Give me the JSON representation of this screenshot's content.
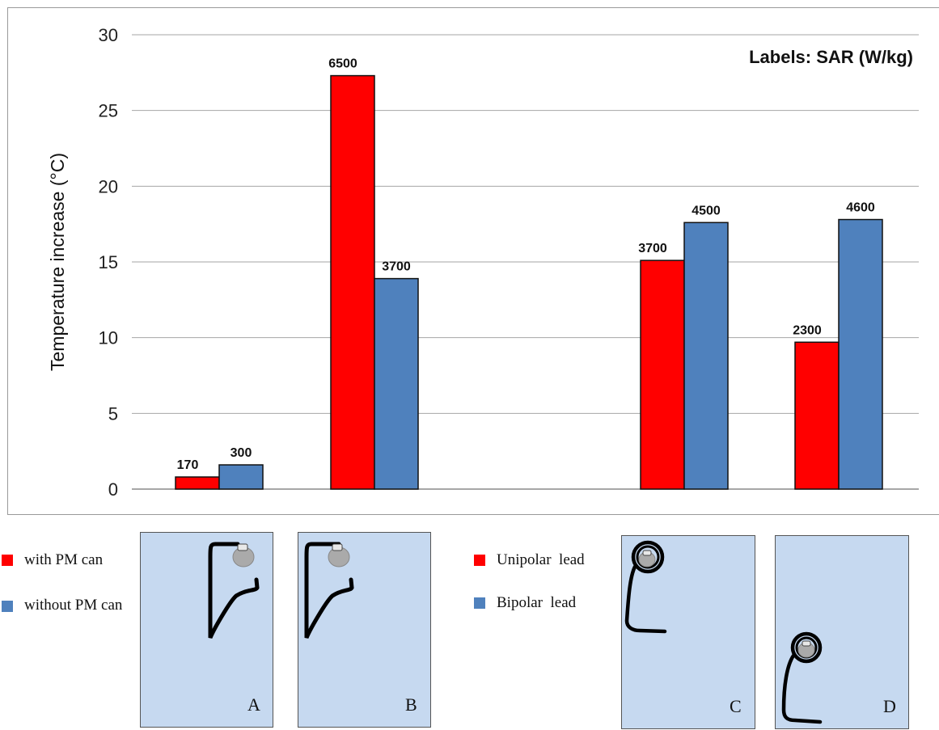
{
  "chart_data": {
    "type": "bar",
    "ylabel": "Temperature increase (°C)",
    "ylim": [
      0,
      30
    ],
    "yticks": [
      0,
      5,
      10,
      15,
      20,
      25,
      30
    ],
    "grid": true,
    "annotation": "Labels: SAR (W/kg)",
    "groups": [
      {
        "panel": "A",
        "bars": [
          {
            "value": 0.8,
            "label": "170",
            "color": "#ff0000"
          },
          {
            "value": 1.6,
            "label": "300",
            "color": "#4f81bd"
          }
        ]
      },
      {
        "panel": "B",
        "bars": [
          {
            "value": 27.3,
            "label": "6500",
            "color": "#ff0000"
          },
          {
            "value": 13.9,
            "label": "3700",
            "color": "#4f81bd"
          }
        ]
      },
      {
        "panel": "C",
        "bars": [
          {
            "value": 15.1,
            "label": "3700",
            "color": "#ff0000"
          },
          {
            "value": 17.6,
            "label": "4500",
            "color": "#4f81bd"
          }
        ]
      },
      {
        "panel": "D",
        "bars": [
          {
            "value": 9.7,
            "label": "2300",
            "color": "#ff0000"
          },
          {
            "value": 17.8,
            "label": "4600",
            "color": "#4f81bd"
          }
        ]
      }
    ]
  },
  "legend_left": [
    {
      "label": "with PM can",
      "color": "#ff0000"
    },
    {
      "label": "without PM can",
      "color": "#4f81bd"
    }
  ],
  "legend_right": [
    {
      "label": "Unipolar  lead",
      "color": "#ff0000"
    },
    {
      "label": "Bipolar  lead",
      "color": "#4f81bd"
    }
  ],
  "panels": {
    "a": "A",
    "b": "B",
    "c": "C",
    "d": "D"
  }
}
